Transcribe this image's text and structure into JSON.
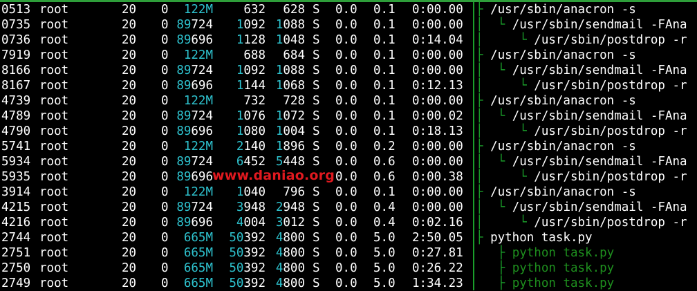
{
  "colors": {
    "background": "#000000",
    "text": "#ffffff",
    "highlight": "#2ec3cf",
    "tree_line": "#1a9e2a",
    "thread_text": "#1e8f1e",
    "watermark": "#e0191f"
  },
  "watermark": "www.daniao.org",
  "rows": [
    {
      "pid": "0513",
      "user": "root",
      "pr": "20",
      "ni": "0",
      "virt_hl": "122M",
      "virt": "",
      "res_hl": "",
      "res": "632",
      "shr_hl": "",
      "shr": "628",
      "s": "S",
      "cpu": "0.0",
      "mem": "0.1",
      "time": "0:00.00",
      "tree": "├ ",
      "cmd": "/usr/sbin/anacron -s",
      "green": false
    },
    {
      "pid": "0735",
      "user": "root",
      "pr": "20",
      "ni": "0",
      "virt_hl": "89",
      "virt": "724",
      "res_hl": "1",
      "res": "092",
      "shr_hl": "1",
      "shr": "088",
      "s": "S",
      "cpu": "0.0",
      "mem": "0.1",
      "time": "0:00.00",
      "tree": "│  └ ",
      "cmd": "/usr/sbin/sendmail -FAna",
      "green": false
    },
    {
      "pid": "0736",
      "user": "root",
      "pr": "20",
      "ni": "0",
      "virt_hl": "89",
      "virt": "696",
      "res_hl": "1",
      "res": "128",
      "shr_hl": "1",
      "shr": "048",
      "s": "S",
      "cpu": "0.0",
      "mem": "0.1",
      "time": "0:14.04",
      "tree": "│     └ ",
      "cmd": "/usr/sbin/postdrop -r",
      "green": false
    },
    {
      "pid": "7919",
      "user": "root",
      "pr": "20",
      "ni": "0",
      "virt_hl": "122M",
      "virt": "",
      "res_hl": "",
      "res": "688",
      "shr_hl": "",
      "shr": "684",
      "s": "S",
      "cpu": "0.0",
      "mem": "0.1",
      "time": "0:00.00",
      "tree": "├ ",
      "cmd": "/usr/sbin/anacron -s",
      "green": false
    },
    {
      "pid": "8166",
      "user": "root",
      "pr": "20",
      "ni": "0",
      "virt_hl": "89",
      "virt": "724",
      "res_hl": "1",
      "res": "092",
      "shr_hl": "1",
      "shr": "088",
      "s": "S",
      "cpu": "0.0",
      "mem": "0.1",
      "time": "0:00.00",
      "tree": "│  └ ",
      "cmd": "/usr/sbin/sendmail -FAna",
      "green": false
    },
    {
      "pid": "8167",
      "user": "root",
      "pr": "20",
      "ni": "0",
      "virt_hl": "89",
      "virt": "696",
      "res_hl": "1",
      "res": "144",
      "shr_hl": "1",
      "shr": "068",
      "s": "S",
      "cpu": "0.0",
      "mem": "0.1",
      "time": "0:12.13",
      "tree": "│     └ ",
      "cmd": "/usr/sbin/postdrop -r",
      "green": false
    },
    {
      "pid": "4739",
      "user": "root",
      "pr": "20",
      "ni": "0",
      "virt_hl": "122M",
      "virt": "",
      "res_hl": "",
      "res": "732",
      "shr_hl": "",
      "shr": "728",
      "s": "S",
      "cpu": "0.0",
      "mem": "0.1",
      "time": "0:00.00",
      "tree": "├ ",
      "cmd": "/usr/sbin/anacron -s",
      "green": false
    },
    {
      "pid": "4789",
      "user": "root",
      "pr": "20",
      "ni": "0",
      "virt_hl": "89",
      "virt": "724",
      "res_hl": "1",
      "res": "076",
      "shr_hl": "1",
      "shr": "072",
      "s": "S",
      "cpu": "0.0",
      "mem": "0.1",
      "time": "0:00.02",
      "tree": "│  └ ",
      "cmd": "/usr/sbin/sendmail -FAna",
      "green": false
    },
    {
      "pid": "4790",
      "user": "root",
      "pr": "20",
      "ni": "0",
      "virt_hl": "89",
      "virt": "696",
      "res_hl": "1",
      "res": "080",
      "shr_hl": "1",
      "shr": "004",
      "s": "S",
      "cpu": "0.0",
      "mem": "0.1",
      "time": "0:18.13",
      "tree": "│     └ ",
      "cmd": "/usr/sbin/postdrop -r",
      "green": false
    },
    {
      "pid": "5741",
      "user": "root",
      "pr": "20",
      "ni": "0",
      "virt_hl": "122M",
      "virt": "",
      "res_hl": "2",
      "res": "140",
      "shr_hl": "1",
      "shr": "896",
      "s": "S",
      "cpu": "0.0",
      "mem": "0.2",
      "time": "0:00.00",
      "tree": "├ ",
      "cmd": "/usr/sbin/anacron -s",
      "green": false
    },
    {
      "pid": "5934",
      "user": "root",
      "pr": "20",
      "ni": "0",
      "virt_hl": "89",
      "virt": "724",
      "res_hl": "6",
      "res": "452",
      "shr_hl": "5",
      "shr": "448",
      "s": "S",
      "cpu": "0.0",
      "mem": "0.6",
      "time": "0:00.00",
      "tree": "│  └ ",
      "cmd": "/usr/sbin/sendmail -FAna",
      "green": false
    },
    {
      "pid": "5935",
      "user": "root",
      "pr": "20",
      "ni": "0",
      "virt_hl": "89",
      "virt": "696",
      "res_hl": "",
      "res": "",
      "shr_hl": "",
      "shr": "",
      "s": "",
      "cpu": "0.0",
      "mem": "0.6",
      "time": "0:00.38",
      "tree": "│     └ ",
      "cmd": "/usr/sbin/postdrop -r",
      "green": false
    },
    {
      "pid": "3914",
      "user": "root",
      "pr": "20",
      "ni": "0",
      "virt_hl": "122M",
      "virt": "",
      "res_hl": "1",
      "res": "040",
      "shr_hl": "",
      "shr": "796",
      "s": "S",
      "cpu": "0.0",
      "mem": "0.1",
      "time": "0:00.00",
      "tree": "├ ",
      "cmd": "/usr/sbin/anacron -s",
      "green": false
    },
    {
      "pid": "4215",
      "user": "root",
      "pr": "20",
      "ni": "0",
      "virt_hl": "89",
      "virt": "724",
      "res_hl": "3",
      "res": "948",
      "shr_hl": "2",
      "shr": "948",
      "s": "S",
      "cpu": "0.0",
      "mem": "0.4",
      "time": "0:00.00",
      "tree": "│  └ ",
      "cmd": "/usr/sbin/sendmail -FAna",
      "green": false
    },
    {
      "pid": "4216",
      "user": "root",
      "pr": "20",
      "ni": "0",
      "virt_hl": "89",
      "virt": "696",
      "res_hl": "4",
      "res": "004",
      "shr_hl": "3",
      "shr": "012",
      "s": "S",
      "cpu": "0.0",
      "mem": "0.4",
      "time": "0:02.16",
      "tree": "│     └ ",
      "cmd": "/usr/sbin/postdrop -r",
      "green": false
    },
    {
      "pid": "2744",
      "user": "root",
      "pr": "20",
      "ni": "0",
      "virt_hl": "665M",
      "virt": "",
      "res_hl": "50",
      "res": "392",
      "shr_hl": "4",
      "shr": "800",
      "s": "S",
      "cpu": "0.0",
      "mem": "5.0",
      "time": "2:50.05",
      "tree": "├ ",
      "cmd": "python task.py",
      "green": false
    },
    {
      "pid": "2751",
      "user": "root",
      "pr": "20",
      "ni": "0",
      "virt_hl": "665M",
      "virt": "",
      "res_hl": "50",
      "res": "392",
      "shr_hl": "4",
      "shr": "800",
      "s": "S",
      "cpu": "0.0",
      "mem": "5.0",
      "time": "0:27.81",
      "tree": "   ├ ",
      "cmd": "python task.py",
      "green": true
    },
    {
      "pid": "2750",
      "user": "root",
      "pr": "20",
      "ni": "0",
      "virt_hl": "665M",
      "virt": "",
      "res_hl": "50",
      "res": "392",
      "shr_hl": "4",
      "shr": "800",
      "s": "S",
      "cpu": "0.0",
      "mem": "5.0",
      "time": "0:26.22",
      "tree": "   ├ ",
      "cmd": "python task.py",
      "green": true
    },
    {
      "pid": "2749",
      "user": "root",
      "pr": "20",
      "ni": "0",
      "virt_hl": "665M",
      "virt": "",
      "res_hl": "50",
      "res": "392",
      "shr_hl": "4",
      "shr": "800",
      "s": "S",
      "cpu": "0.0",
      "mem": "5.0",
      "time": "1:34.23",
      "tree": "   ├ ",
      "cmd": "python task.py",
      "green": true
    }
  ]
}
